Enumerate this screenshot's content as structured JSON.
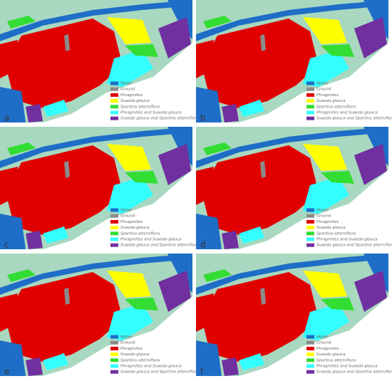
{
  "panels": [
    {
      "label": "a"
    },
    {
      "label": "b"
    },
    {
      "label": "c"
    },
    {
      "label": "d"
    },
    {
      "label": "e"
    },
    {
      "label": "f"
    }
  ],
  "legend": [
    {
      "label": "Water",
      "color": "#1e6ec8"
    },
    {
      "label": "Ground",
      "color": "#8c8c8c"
    },
    {
      "label": "Phragmites",
      "color": "#e00000"
    },
    {
      "label": "Suaeda glauca",
      "color": "#ffff00"
    },
    {
      "label": "Spartina alterniflora",
      "color": "#33dd33"
    },
    {
      "label": "Phragmites and Suaeda glauca",
      "color": "#33ffff"
    },
    {
      "label": "Suaeda glauca and Spartina alterniflora",
      "color": "#7030a0"
    }
  ]
}
